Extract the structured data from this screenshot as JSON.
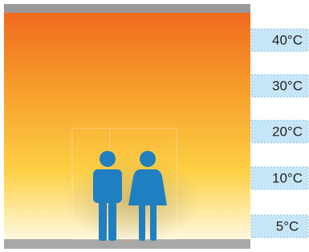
{
  "temperature_labels": [
    "40°C",
    "30°C",
    "20°C",
    "10°C",
    "5°C"
  ]
}
